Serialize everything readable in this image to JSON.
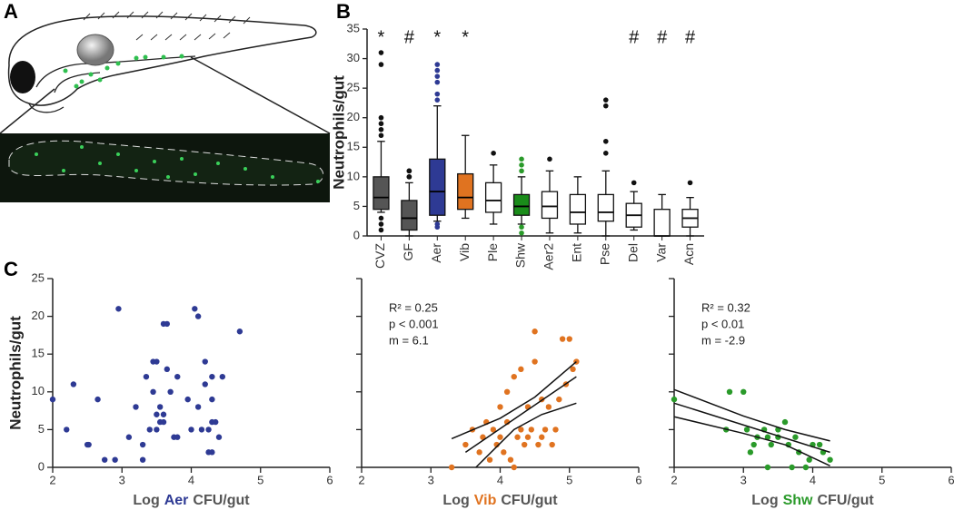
{
  "panel_labels": [
    "A",
    "B",
    "C"
  ],
  "chart_data": [
    {
      "type": "box",
      "ylabel": "Neutrophils/gut",
      "categories": [
        "CVZ",
        "GF",
        "Aer",
        "Vib",
        "Ple",
        "Shw",
        "Aer2",
        "Ent",
        "Pse",
        "Del",
        "Var",
        "Acn"
      ],
      "colors": [
        "#555555",
        "#555555",
        "#2e3a94",
        "#e07320",
        "#ffffff",
        "#1a8c1a",
        "#ffffff",
        "#ffffff",
        "#ffffff",
        "#ffffff",
        "#ffffff",
        "#ffffff"
      ],
      "flier_colors": [
        "#111111",
        "#111111",
        "#2e3a94",
        "#e07320",
        "#111111",
        "#2a9a2a",
        "#111111",
        "#111111",
        "#111111",
        "#111111",
        "#111111",
        "#111111"
      ],
      "annotations": [
        "*",
        "#",
        "*",
        "*",
        null,
        null,
        null,
        null,
        null,
        "#",
        "#",
        "#"
      ],
      "boxes": [
        {
          "whislo": 4,
          "q1": 4.5,
          "med": 6.5,
          "q3": 10,
          "whishi": 16,
          "fliers": [
            31,
            29,
            20,
            19,
            18,
            17,
            3,
            2,
            1
          ]
        },
        {
          "whislo": 0,
          "q1": 1,
          "med": 3,
          "q3": 6,
          "whishi": 9,
          "fliers": [
            11,
            11,
            10,
            10
          ]
        },
        {
          "whislo": 2.5,
          "q1": 3.5,
          "med": 7.5,
          "q3": 13,
          "whishi": 22,
          "fliers": [
            29,
            28,
            27,
            26,
            24,
            23,
            2,
            1.5
          ]
        },
        {
          "whislo": 3,
          "q1": 4.5,
          "med": 6.5,
          "q3": 10.5,
          "whishi": 17,
          "fliers": []
        },
        {
          "whislo": 2,
          "q1": 4,
          "med": 6,
          "q3": 9,
          "whishi": 12,
          "fliers": [
            14
          ]
        },
        {
          "whislo": 2,
          "q1": 3.5,
          "med": 5,
          "q3": 7,
          "whishi": 10,
          "fliers": [
            13,
            12,
            11,
            1.5,
            0.5
          ]
        },
        {
          "whislo": 0.5,
          "q1": 3,
          "med": 5,
          "q3": 7.5,
          "whishi": 11,
          "fliers": [
            13
          ]
        },
        {
          "whislo": 0.5,
          "q1": 2,
          "med": 4,
          "q3": 7,
          "whishi": 10,
          "fliers": []
        },
        {
          "whislo": 0,
          "q1": 2.5,
          "med": 4,
          "q3": 7,
          "whishi": 11,
          "fliers": [
            23,
            22,
            16,
            14
          ]
        },
        {
          "whislo": 1,
          "q1": 1.5,
          "med": 3.5,
          "q3": 5.5,
          "whishi": 7.5,
          "fliers": [
            9
          ]
        },
        {
          "whislo": 0,
          "q1": 0,
          "med": 0,
          "q3": 4.5,
          "whishi": 7,
          "fliers": []
        },
        {
          "whislo": 0,
          "q1": 1.5,
          "med": 3,
          "q3": 4.5,
          "whishi": 6.5,
          "fliers": [
            9
          ]
        }
      ],
      "ylim": [
        0,
        35
      ],
      "yticks": [
        0,
        5,
        10,
        15,
        20,
        25,
        30,
        35
      ]
    },
    {
      "type": "scatter",
      "ylabel": "Neutrophils/gut",
      "xlabel": {
        "prefix": "Log",
        "name": "Aer",
        "suffix": "CFU/gut"
      },
      "color": "#2e3a94",
      "x": [
        2.0,
        2.2,
        2.3,
        2.5,
        2.52,
        2.65,
        2.75,
        2.9,
        2.95,
        3.1,
        3.2,
        3.3,
        3.3,
        3.35,
        3.4,
        3.45,
        3.45,
        3.5,
        3.5,
        3.5,
        3.55,
        3.55,
        3.6,
        3.6,
        3.6,
        3.65,
        3.65,
        3.7,
        3.75,
        3.8,
        3.8,
        3.95,
        4.0,
        4.05,
        4.1,
        4.1,
        4.15,
        4.2,
        4.2,
        4.25,
        4.25,
        4.3,
        4.3,
        4.3,
        4.3,
        4.35,
        4.4,
        4.45,
        4.7
      ],
      "values": [
        9,
        5,
        11,
        3,
        3,
        9,
        1,
        1,
        21,
        4,
        8,
        1,
        3,
        12,
        5,
        10,
        14,
        14,
        5,
        7,
        8,
        6,
        19,
        6,
        7,
        19,
        13,
        10,
        4,
        4,
        12,
        9,
        5,
        21,
        20,
        8,
        5,
        14,
        11,
        5,
        2,
        2,
        6,
        9,
        12,
        6,
        4,
        12,
        18
      ],
      "xlim": [
        2,
        6
      ],
      "xticks": [
        2,
        3,
        4,
        5,
        6
      ],
      "ylim": [
        0,
        25
      ],
      "yticks": [
        0,
        5,
        10,
        15,
        20,
        25
      ],
      "show_ytick_labels": true
    },
    {
      "type": "scatter",
      "xlabel": {
        "prefix": "Log",
        "name": "Vib",
        "suffix": "CFU/gut"
      },
      "color": "#e07320",
      "annotations": [
        "R² = 0.25",
        "p < 0.001",
        "m = 6.1"
      ],
      "x": [
        3.3,
        3.5,
        3.6,
        3.7,
        3.75,
        3.8,
        3.85,
        3.9,
        3.95,
        4.0,
        4.0,
        4.05,
        4.1,
        4.1,
        4.15,
        4.2,
        4.2,
        4.25,
        4.3,
        4.3,
        4.35,
        4.4,
        4.4,
        4.45,
        4.5,
        4.5,
        4.55,
        4.6,
        4.6,
        4.65,
        4.7,
        4.75,
        4.8,
        4.85,
        4.9,
        4.95,
        5.0,
        5.05,
        5.1
      ],
      "values": [
        0,
        3,
        5,
        2,
        4,
        6,
        1,
        5,
        3,
        4,
        8,
        2,
        6,
        10,
        1,
        12,
        0,
        4,
        5,
        13,
        3,
        4,
        8,
        5,
        14,
        18,
        3,
        4,
        9,
        5,
        8,
        3,
        5,
        9,
        17,
        11,
        17,
        13,
        14
      ],
      "fit_lines": [
        {
          "x": [
            3.3,
            4.0,
            4.5,
            5.1
          ],
          "y": [
            3.8,
            6.5,
            9.3,
            14
          ]
        },
        {
          "x": [
            3.5,
            5.1
          ],
          "y": [
            2,
            12
          ]
        },
        {
          "x": [
            3.65,
            4.2,
            4.6,
            5.1
          ],
          "y": [
            0,
            5,
            7,
            8.5
          ]
        }
      ],
      "xlim": [
        2,
        6
      ],
      "xticks": [
        2,
        3,
        4,
        5,
        6
      ],
      "ylim": [
        0,
        25
      ],
      "yticks": [
        0,
        5,
        10,
        15,
        20,
        25
      ],
      "show_ytick_labels": false
    },
    {
      "type": "scatter",
      "xlabel": {
        "prefix": "Log",
        "name": "Shw",
        "suffix": "CFU/gut"
      },
      "color": "#2a9a2a",
      "annotations": [
        "R² = 0.32",
        "p < 0.01",
        "m = -2.9"
      ],
      "x": [
        2.0,
        2.75,
        2.8,
        3.0,
        3.05,
        3.1,
        3.15,
        3.2,
        3.3,
        3.35,
        3.35,
        3.4,
        3.5,
        3.5,
        3.6,
        3.65,
        3.7,
        3.75,
        3.8,
        3.9,
        3.95,
        4.0,
        4.1,
        4.15,
        4.25
      ],
      "values": [
        9,
        5,
        10,
        10,
        5,
        2,
        3,
        4,
        5,
        4,
        0,
        3,
        4,
        5,
        6,
        3,
        0,
        4,
        2,
        0,
        1,
        3,
        3,
        2,
        1
      ],
      "fit_lines": [
        {
          "x": [
            2,
            3,
            3.6,
            4.25
          ],
          "y": [
            10.3,
            6.8,
            5,
            3.5
          ]
        },
        {
          "x": [
            2,
            4.25
          ],
          "y": [
            8.5,
            2
          ]
        },
        {
          "x": [
            2,
            3,
            3.6,
            4.25
          ],
          "y": [
            6.7,
            4.5,
            3,
            0.2
          ]
        }
      ],
      "xlim": [
        2,
        6
      ],
      "xticks": [
        2,
        3,
        4,
        5,
        6
      ],
      "ylim": [
        0,
        25
      ],
      "yticks": [
        0,
        5,
        10,
        15,
        20,
        25
      ],
      "show_ytick_labels": false
    }
  ]
}
